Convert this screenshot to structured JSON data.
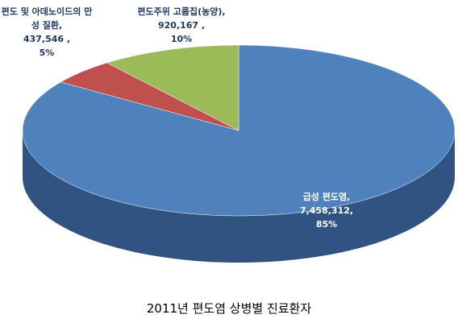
{
  "chart_data": {
    "type": "pie",
    "title": "2011년 편도염 상병별 진료환자",
    "categories": [
      "급성 편도염,",
      "편도 및 아데노이드의 만성 질환,",
      "편도주위 고름집(농양),"
    ],
    "values": [
      7458312,
      437546,
      920167
    ],
    "value_labels": [
      "7,458,312,",
      "437,546 ,",
      "920,167 ,"
    ],
    "shares": [
      85,
      5,
      10
    ],
    "share_labels": [
      "85%",
      "5%",
      "10%"
    ],
    "colors": [
      "#4f81bd",
      "#c0504d",
      "#9bbb59"
    ]
  }
}
